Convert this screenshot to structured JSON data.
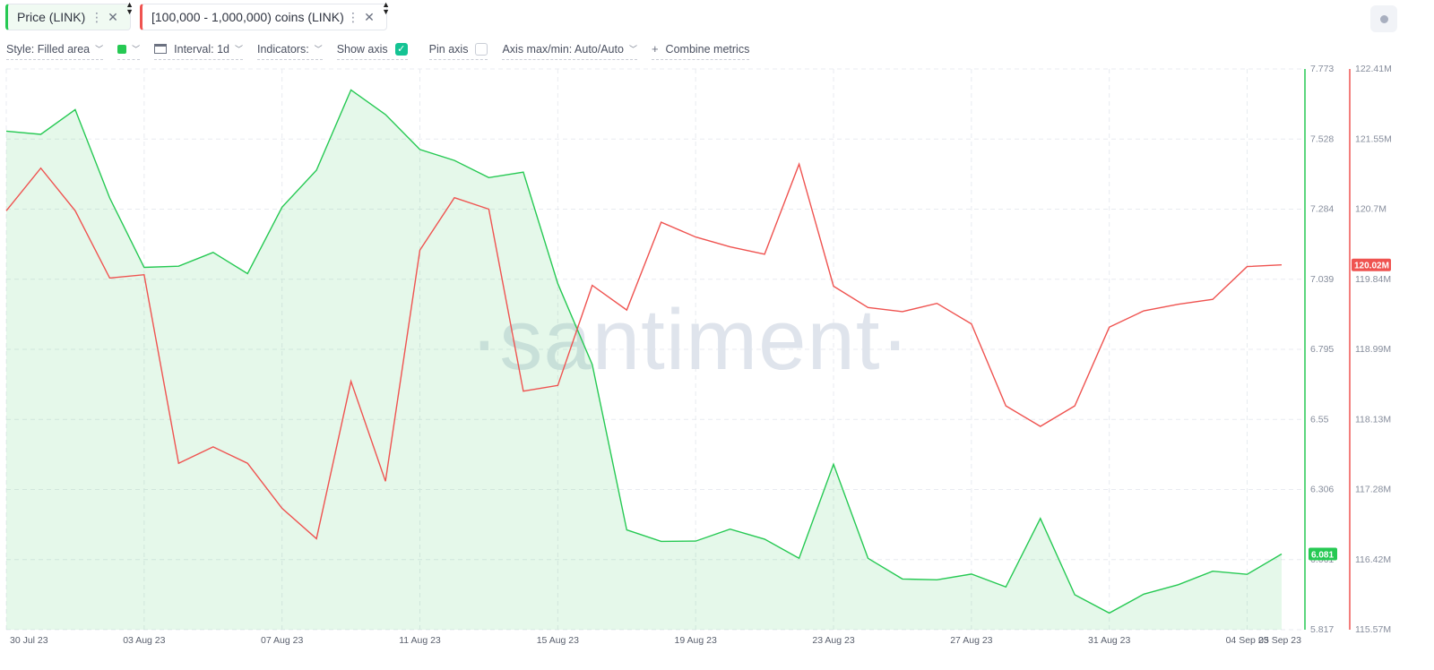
{
  "tabs": [
    {
      "label": "Price (LINK)",
      "color": "#26c953"
    },
    {
      "label": "[100,000 - 1,000,000) coins (LINK)",
      "color": "#ef5350"
    }
  ],
  "toolbar": {
    "style": "Style: Filled area",
    "interval": "Interval: 1d",
    "indicators": "Indicators:",
    "show_axis": "Show axis",
    "show_axis_checked": true,
    "pin_axis": "Pin axis",
    "pin_axis_checked": false,
    "axis_maxmin": "Axis max/min: Auto/Auto",
    "combine": "Combine metrics"
  },
  "watermark": "·santiment·",
  "chart_data": {
    "type": "line",
    "x": [
      "30 Jul 23",
      "31 Jul 23",
      "01 Aug 23",
      "02 Aug 23",
      "03 Aug 23",
      "04 Aug 23",
      "05 Aug 23",
      "06 Aug 23",
      "07 Aug 23",
      "08 Aug 23",
      "09 Aug 23",
      "10 Aug 23",
      "11 Aug 23",
      "12 Aug 23",
      "13 Aug 23",
      "14 Aug 23",
      "15 Aug 23",
      "16 Aug 23",
      "17 Aug 23",
      "18 Aug 23",
      "19 Aug 23",
      "20 Aug 23",
      "21 Aug 23",
      "22 Aug 23",
      "23 Aug 23",
      "24 Aug 23",
      "25 Aug 23",
      "26 Aug 23",
      "27 Aug 23",
      "28 Aug 23",
      "29 Aug 23",
      "30 Aug 23",
      "31 Aug 23",
      "01 Sep 23",
      "02 Sep 23",
      "03 Sep 23",
      "04 Sep 23",
      "05 Sep 23"
    ],
    "x_tick_labels": [
      "30 Jul 23",
      "03 Aug 23",
      "07 Aug 23",
      "11 Aug 23",
      "15 Aug 23",
      "19 Aug 23",
      "23 Aug 23",
      "27 Aug 23",
      "31 Aug 23",
      "04 Sep 23",
      "05 Sep 23"
    ],
    "series": [
      {
        "name": "Price (LINK)",
        "style": "filled-area",
        "color": "#26c953",
        "axis": "left",
        "last_value_label": "6.081",
        "values": [
          7.556,
          7.545,
          7.631,
          7.323,
          7.081,
          7.085,
          7.133,
          7.059,
          7.291,
          7.42,
          7.7,
          7.614,
          7.492,
          7.454,
          7.394,
          7.413,
          7.024,
          6.742,
          6.165,
          6.125,
          6.126,
          6.168,
          6.133,
          6.066,
          6.394,
          6.066,
          5.994,
          5.991,
          6.011,
          5.966,
          6.205,
          5.939,
          5.875,
          5.941,
          5.974,
          6.021,
          6.01,
          6.081
        ]
      },
      {
        "name": "[100,000 - 1,000,000) coins (LINK)",
        "style": "line",
        "color": "#ef5350",
        "axis": "right",
        "last_value_label": "120.02M",
        "values": [
          120.68,
          121.2,
          120.68,
          119.86,
          119.9,
          117.6,
          117.8,
          117.6,
          117.05,
          116.68,
          118.6,
          117.38,
          120.2,
          120.84,
          120.7,
          118.48,
          118.55,
          119.77,
          119.47,
          120.54,
          120.36,
          120.24,
          120.15,
          121.25,
          119.76,
          119.5,
          119.45,
          119.55,
          119.3,
          118.3,
          118.05,
          118.3,
          119.26,
          119.46,
          119.54,
          119.6,
          120.0,
          120.02
        ]
      }
    ],
    "y_left": {
      "min": 5.817,
      "max": 7.773,
      "ticks": [
        "7.773",
        "7.528",
        "7.284",
        "7.039",
        "6.795",
        "6.55",
        "6.306",
        "6.061",
        "5.817"
      ]
    },
    "y_right": {
      "min": 115.57,
      "max": 122.41,
      "ticks": [
        "122.41M",
        "121.55M",
        "120.7M",
        "119.84M",
        "118.99M",
        "118.13M",
        "117.28M",
        "116.42M",
        "115.57M"
      ]
    },
    "grid": true
  }
}
